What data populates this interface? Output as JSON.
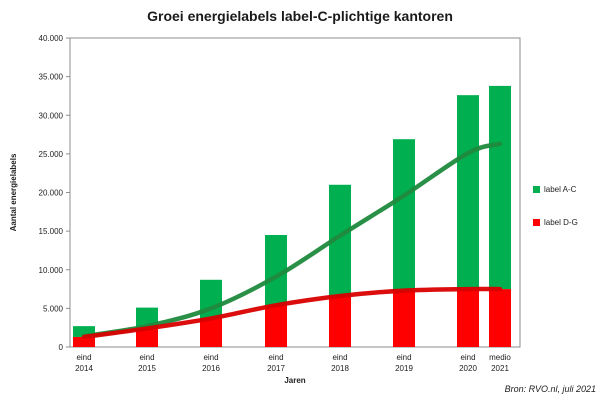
{
  "chart_data": {
    "type": "bar",
    "title": "Groei energielabels label-C-plichtige kantoren",
    "xlabel": "Jaren",
    "ylabel": "Aantal energielabels",
    "ylim": [
      0,
      40000
    ],
    "yticks": [
      "0",
      "5.000",
      "10.000",
      "15.000",
      "20.000",
      "25.000",
      "30.000",
      "35.000",
      "40.000"
    ],
    "ytick_values": [
      0,
      5000,
      10000,
      15000,
      20000,
      25000,
      30000,
      35000,
      40000
    ],
    "categories": [
      [
        "eind",
        "2014"
      ],
      [
        "eind",
        "2015"
      ],
      [
        "eind",
        "2016"
      ],
      [
        "eind",
        "2017"
      ],
      [
        "eind",
        "2018"
      ],
      [
        "eind",
        "2019"
      ],
      [
        "eind",
        "2020"
      ],
      [
        "medio",
        "2021"
      ]
    ],
    "stacked": true,
    "grid": false,
    "legend_position": "right",
    "series": [
      {
        "name": "label D-G",
        "color": "#ff0000",
        "values": [
          1300,
          2400,
          3700,
          5400,
          6600,
          7300,
          7500,
          7500
        ]
      },
      {
        "name": "label A-C",
        "color": "#00b050",
        "values": [
          1400,
          2700,
          5000,
          9100,
          14400,
          19600,
          25100,
          26300
        ]
      }
    ],
    "trendlines": [
      {
        "series": "label A-C",
        "color": "#00b050"
      },
      {
        "series": "label D-G",
        "color": "#ff0000"
      }
    ],
    "legend_order": [
      "label A-C",
      "label D-G"
    ],
    "source": "Bron: RVO.nl, juli 2021"
  }
}
